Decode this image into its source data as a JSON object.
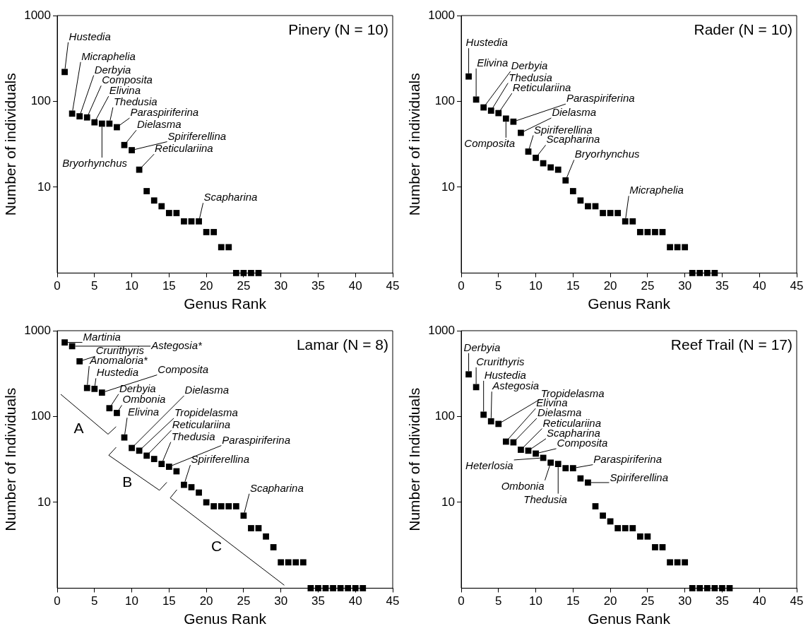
{
  "chart_data": [
    {
      "type": "scatter",
      "title": "Pinery (N = 10)",
      "xlabel": "Genus Rank",
      "ylabel": "Number of individuals",
      "log": "y",
      "grid": false,
      "legend": false,
      "marker": "square",
      "xlim": [
        0,
        45
      ],
      "xticks": [
        0,
        5,
        10,
        15,
        20,
        25,
        30,
        35,
        40,
        45
      ],
      "ylim": [
        1,
        1000
      ],
      "yticks": [
        10,
        100,
        1000
      ],
      "x": [
        1,
        2,
        3,
        4,
        5,
        6,
        7,
        8,
        9,
        10,
        11,
        12,
        13,
        14,
        15,
        16,
        17,
        18,
        19,
        20,
        21,
        22,
        23,
        24,
        25,
        26,
        27
      ],
      "series": [
        {
          "color": "#000000",
          "values": [
            220,
            72,
            67,
            65,
            57,
            55,
            55,
            50,
            31,
            27,
            16,
            9,
            7,
            6,
            5,
            5,
            4,
            4,
            4,
            3,
            3,
            2,
            2,
            1,
            1,
            1,
            1
          ]
        }
      ],
      "annotations": [
        {
          "text": "Hustedia",
          "x": 1,
          "y": 220
        },
        {
          "text": "Micraphelia",
          "x": 2,
          "y": 72
        },
        {
          "text": "Derbyia",
          "x": 3,
          "y": 67
        },
        {
          "text": "Composita",
          "x": 4,
          "y": 65
        },
        {
          "text": "Elivina",
          "x": 5,
          "y": 57
        },
        {
          "text": "Thedusia",
          "x": 7,
          "y": 55
        },
        {
          "text": "Paraspiriferina",
          "x": 8,
          "y": 50
        },
        {
          "text": "Dielasma",
          "x": 9,
          "y": 31
        },
        {
          "text": "Spiriferellina",
          "x": 10,
          "y": 27
        },
        {
          "text": "Reticulariina",
          "x": 11,
          "y": 16
        },
        {
          "text": "Bryorhynchus",
          "x": 6,
          "y": 55
        },
        {
          "text": "Scapharina",
          "x": 19,
          "y": 4
        }
      ]
    },
    {
      "type": "scatter",
      "title": "Rader (N = 10)",
      "xlabel": "Genus Rank",
      "ylabel": "Number of individuals",
      "log": "y",
      "grid": false,
      "legend": false,
      "marker": "square",
      "xlim": [
        0,
        45
      ],
      "xticks": [
        0,
        5,
        10,
        15,
        20,
        25,
        30,
        35,
        40,
        45
      ],
      "ylim": [
        1,
        1000
      ],
      "yticks": [
        10,
        100,
        1000
      ],
      "x": [
        1,
        2,
        3,
        4,
        5,
        6,
        7,
        8,
        9,
        10,
        11,
        12,
        13,
        14,
        15,
        16,
        17,
        18,
        19,
        20,
        21,
        22,
        23,
        24,
        25,
        26,
        27,
        28,
        29,
        30,
        31,
        32,
        33,
        34
      ],
      "series": [
        {
          "color": "#000000",
          "values": [
            195,
            105,
            85,
            78,
            73,
            63,
            58,
            43,
            26,
            22,
            19,
            17,
            16,
            12,
            9,
            7,
            6,
            6,
            5,
            5,
            5,
            4,
            4,
            3,
            3,
            3,
            3,
            2,
            2,
            2,
            1,
            1,
            1,
            1
          ]
        }
      ],
      "annotations": [
        {
          "text": "Hustedia",
          "x": 1,
          "y": 195
        },
        {
          "text": "Elivina",
          "x": 2,
          "y": 105
        },
        {
          "text": "Derbyia",
          "x": 3,
          "y": 85
        },
        {
          "text": "Thedusia",
          "x": 4,
          "y": 78
        },
        {
          "text": "Reticulariina",
          "x": 5,
          "y": 73
        },
        {
          "text": "Paraspiriferina",
          "x": 7,
          "y": 58
        },
        {
          "text": "Dielasma",
          "x": 8,
          "y": 43
        },
        {
          "text": "Composita",
          "x": 6,
          "y": 63
        },
        {
          "text": "Spiriferellina",
          "x": 9,
          "y": 26
        },
        {
          "text": "Scapharina",
          "x": 10,
          "y": 22
        },
        {
          "text": "Bryorhynchus",
          "x": 14,
          "y": 12
        },
        {
          "text": "Micraphelia",
          "x": 22,
          "y": 4
        }
      ]
    },
    {
      "type": "scatter",
      "title": "Lamar (N = 8)",
      "xlabel": "Genus Rank",
      "ylabel": "Number of Individuals",
      "log": "y",
      "grid": false,
      "legend": false,
      "marker": "square",
      "xlim": [
        0,
        45
      ],
      "xticks": [
        0,
        5,
        10,
        15,
        20,
        25,
        30,
        35,
        40,
        45
      ],
      "ylim": [
        1,
        1000
      ],
      "yticks": [
        10,
        100,
        1000
      ],
      "x": [
        1,
        2,
        3,
        4,
        5,
        6,
        7,
        8,
        9,
        10,
        11,
        12,
        13,
        14,
        15,
        16,
        17,
        18,
        19,
        20,
        21,
        22,
        23,
        24,
        25,
        26,
        27,
        28,
        29,
        30,
        31,
        32,
        33,
        34,
        35,
        36,
        37,
        38,
        39,
        40,
        41
      ],
      "series": [
        {
          "color": "#000000",
          "values": [
            730,
            660,
            440,
            215,
            210,
            190,
            125,
            110,
            57,
            43,
            40,
            35,
            32,
            28,
            26,
            23,
            16,
            15,
            13,
            10,
            9,
            9,
            9,
            9,
            7,
            5,
            5,
            4,
            3,
            2,
            2,
            2,
            2,
            1,
            1,
            1,
            1,
            1,
            1,
            1,
            1
          ]
        }
      ],
      "annotations": [
        {
          "text": "Martinia",
          "x": 1,
          "y": 730
        },
        {
          "text": "Astegosia*",
          "x": 2,
          "y": 660
        },
        {
          "text": "Crurithyris",
          "x": 3,
          "y": 440
        },
        {
          "text": "Anomaloria*",
          "x": 4,
          "y": 215
        },
        {
          "text": "Hustedia",
          "x": 5,
          "y": 210
        },
        {
          "text": "Composita",
          "x": 6,
          "y": 190
        },
        {
          "text": "Derbyia",
          "x": 7,
          "y": 125
        },
        {
          "text": "Ombonia",
          "x": 8,
          "y": 110
        },
        {
          "text": "Elivina",
          "x": 9,
          "y": 57
        },
        {
          "text": "Dielasma",
          "x": 10,
          "y": 43
        },
        {
          "text": "Tropidelasma",
          "x": 11,
          "y": 40
        },
        {
          "text": "Reticulariina",
          "x": 12,
          "y": 35
        },
        {
          "text": "Thedusia",
          "x": 14,
          "y": 28
        },
        {
          "text": "Paraspiriferina",
          "x": 15,
          "y": 26
        },
        {
          "text": "Spiriferellina",
          "x": 17,
          "y": 16
        },
        {
          "text": "Scapharina",
          "x": 25,
          "y": 7
        },
        "A",
        "B",
        "C"
      ]
    },
    {
      "type": "scatter",
      "title": "Reef Trail (N = 17)",
      "xlabel": "Genus Rank",
      "ylabel": "Number of Individuals",
      "log": "y",
      "grid": false,
      "legend": false,
      "marker": "square",
      "xlim": [
        0,
        45
      ],
      "xticks": [
        0,
        5,
        10,
        15,
        20,
        25,
        30,
        35,
        40,
        45
      ],
      "ylim": [
        1,
        1000
      ],
      "yticks": [
        10,
        100,
        1000
      ],
      "x": [
        1,
        2,
        3,
        4,
        5,
        6,
        7,
        8,
        9,
        10,
        11,
        12,
        13,
        14,
        15,
        16,
        17,
        18,
        19,
        20,
        21,
        22,
        23,
        24,
        25,
        26,
        27,
        28,
        29,
        30,
        31,
        32,
        33,
        34,
        35,
        36
      ],
      "series": [
        {
          "color": "#000000",
          "values": [
            310,
            220,
            105,
            88,
            82,
            51,
            50,
            41,
            40,
            37,
            33,
            29,
            28,
            25,
            25,
            19,
            17,
            9,
            7,
            6,
            5,
            5,
            5,
            4,
            4,
            3,
            3,
            2,
            2,
            2,
            1,
            1,
            1,
            1,
            1,
            1
          ]
        }
      ],
      "annotations": [
        {
          "text": "Derbyia",
          "x": 1,
          "y": 310
        },
        {
          "text": "Crurithyris",
          "x": 2,
          "y": 220
        },
        {
          "text": "Hustedia",
          "x": 3,
          "y": 105
        },
        {
          "text": "Astegosia",
          "x": 4,
          "y": 88
        },
        {
          "text": "Tropidelasma",
          "x": 5,
          "y": 82
        },
        {
          "text": "Elivina",
          "x": 6,
          "y": 51
        },
        {
          "text": "Dielasma",
          "x": 7,
          "y": 50
        },
        {
          "text": "Reticulariina",
          "x": 8,
          "y": 41
        },
        {
          "text": "Scapharina",
          "x": 9,
          "y": 40
        },
        {
          "text": "Composita",
          "x": 10,
          "y": 37
        },
        {
          "text": "Heterlosia",
          "x": 11,
          "y": 33
        },
        {
          "text": "Ombonia",
          "x": 12,
          "y": 29
        },
        {
          "text": "Thedusia",
          "x": 13,
          "y": 28
        },
        {
          "text": "Paraspiriferina",
          "x": 15,
          "y": 25
        },
        {
          "text": "Spiriferellina",
          "x": 17,
          "y": 17
        }
      ]
    }
  ]
}
